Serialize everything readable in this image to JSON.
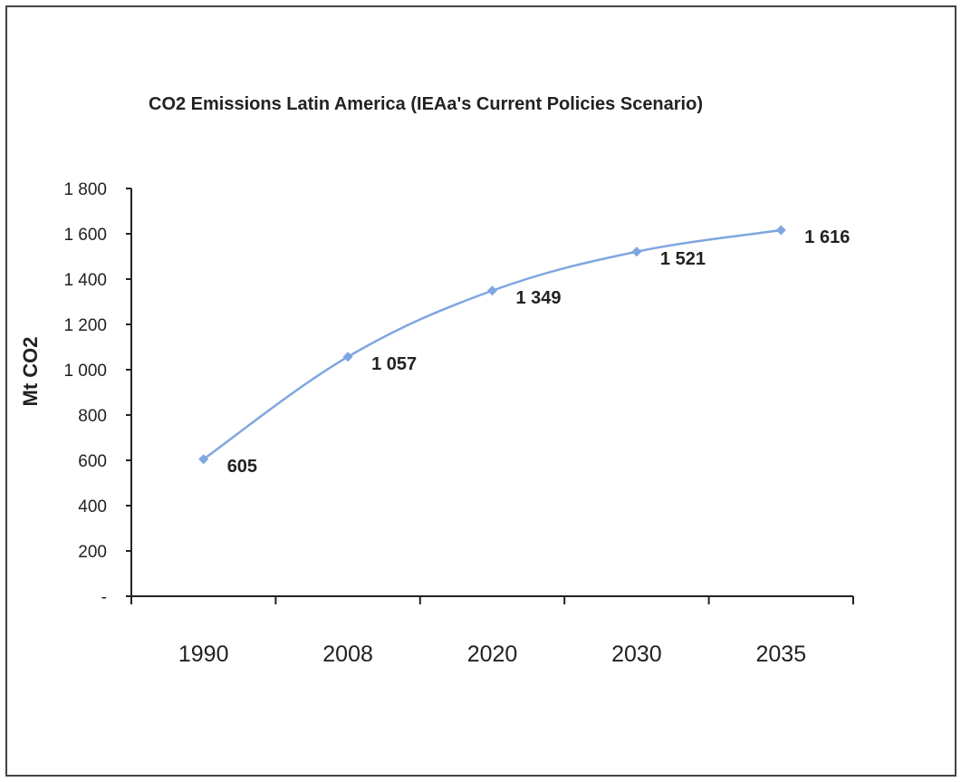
{
  "chart_data": {
    "type": "line",
    "title": "CO2 Emissions Latin America (IEAa's Current Policies Scenario)",
    "xlabel": "",
    "ylabel": "Mt CO2",
    "categories": [
      "1990",
      "2008",
      "2020",
      "2030",
      "2035"
    ],
    "series": [
      {
        "values": [
          605,
          1057,
          1349,
          1521,
          1616
        ],
        "data_labels": [
          "605",
          "1 057",
          "1 349",
          "1 521",
          "1 616"
        ],
        "color": "#7EA6E0",
        "marker": "diamond",
        "smooth": true
      }
    ],
    "ylim": [
      0,
      1800
    ],
    "y_ticks": [
      0,
      200,
      400,
      600,
      800,
      1000,
      1200,
      1400,
      1600,
      1800
    ],
    "y_tick_labels": [
      "-",
      "200",
      "400",
      "600",
      "800",
      "1 000",
      "1 200",
      "1 400",
      "1 600",
      "1 800"
    ],
    "grid": false,
    "legend": "none",
    "colors": {
      "line": "#7EA6E0",
      "axis": "#222222",
      "text": "#222222"
    }
  }
}
